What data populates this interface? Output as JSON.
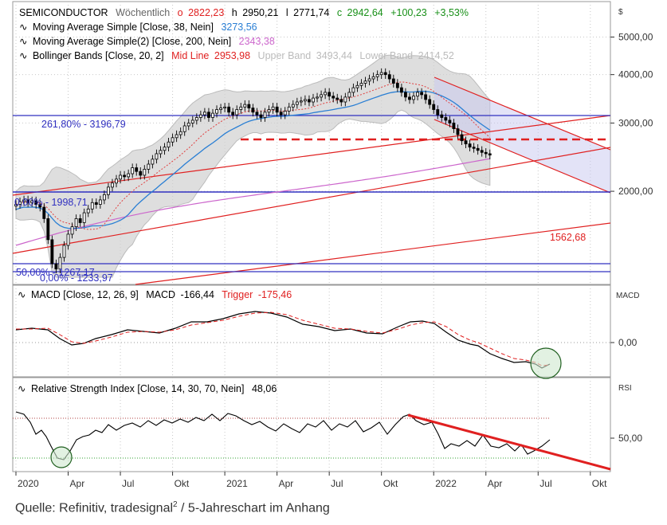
{
  "chart_data": {
    "type": "candlestick",
    "symbol": "SEMICONDUCTOR",
    "interval": "Wöchentlich",
    "ohlc": {
      "o_label": "o",
      "o": "2822,23",
      "h_label": "h",
      "h": "2950,21",
      "l_label": "l",
      "l": "2771,74",
      "c_label": "c",
      "c": "2942,64",
      "chg": "+100,23",
      "chg_pct": "+3,53%"
    },
    "indicators": [
      {
        "name": "Moving Average Simple [Close, 38, Nein]",
        "value": "3273,56",
        "color": "#2a7fd4"
      },
      {
        "name": "Moving Average Simple(2) [Close, 200, Nein]",
        "value": "2343,38",
        "color": "#cc66cc"
      },
      {
        "name": "Bollinger Bands [Close, 20, 2]",
        "mid_label": "Mid Line",
        "mid": "2953,98",
        "upper_label": "Upper Band",
        "upper": "3493,44",
        "lower_label": "Lower Band",
        "lower": "2414,52"
      }
    ],
    "currency_label": "$",
    "y_ticks": [
      {
        "label": "5000,00",
        "value": 5000
      },
      {
        "label": "4000,00",
        "value": 4000
      },
      {
        "label": "3000,00",
        "value": 3000
      },
      {
        "label": "2000,00",
        "value": 2000
      }
    ],
    "y_range": [
      1150,
      6000
    ],
    "y_scale": "log",
    "x_ticks": [
      {
        "label": "2020",
        "week": 0
      },
      {
        "label": "Apr",
        "week": 13
      },
      {
        "label": "Jul",
        "week": 26
      },
      {
        "label": "Okt",
        "week": 39
      },
      {
        "label": "2021",
        "week": 52
      },
      {
        "label": "Apr",
        "week": 65
      },
      {
        "label": "Jul",
        "week": 78
      },
      {
        "label": "Okt",
        "week": 91
      },
      {
        "label": "2022",
        "week": 104
      },
      {
        "label": "Apr",
        "week": 117
      },
      {
        "label": "Jul",
        "week": 130
      },
      {
        "label": "Okt",
        "week": 143
      }
    ],
    "x_range_weeks": [
      0,
      148
    ],
    "closes": [
      1850,
      1880,
      1900,
      1870,
      1890,
      1850,
      1820,
      1700,
      1500,
      1300,
      1260,
      1350,
      1450,
      1550,
      1620,
      1700,
      1660,
      1760,
      1800,
      1870,
      1850,
      1900,
      1960,
      2050,
      2100,
      2150,
      2200,
      2180,
      2220,
      2300,
      2250,
      2200,
      2280,
      2350,
      2420,
      2500,
      2550,
      2600,
      2680,
      2750,
      2800,
      2850,
      2950,
      3000,
      3050,
      3100,
      3150,
      3200,
      3100,
      3180,
      3250,
      3280,
      3300,
      3200,
      3150,
      3250,
      3300,
      3350,
      3280,
      3200,
      3150,
      3100,
      3200,
      3250,
      3300,
      3200,
      3150,
      3220,
      3300,
      3350,
      3400,
      3420,
      3450,
      3400,
      3480,
      3500,
      3550,
      3600,
      3520,
      3480,
      3450,
      3400,
      3500,
      3600,
      3700,
      3750,
      3800,
      3850,
      3900,
      3950,
      4000,
      4050,
      4000,
      3900,
      3800,
      3700,
      3600,
      3500,
      3450,
      3520,
      3600,
      3550,
      3450,
      3350,
      3250,
      3150,
      3100,
      3050,
      3000,
      2900,
      2800,
      2700,
      2650,
      2600,
      2580,
      2550,
      2520,
      2500,
      2480
    ],
    "fib_levels": [
      {
        "label": "261,80% - 3196,79",
        "value": 3196.79
      },
      {
        "label": "0,00% - 1233,97",
        "value": 1233.97
      },
      {
        "label": "50,00% - 1267,17",
        "value": 1267.17
      },
      {
        "label": "0,00% - 1998,71",
        "value": 1998.71
      }
    ],
    "support_label": "1562,68",
    "macd": {
      "title": "MACD [Close, 12, 26, 9]",
      "macd_label": "MACD",
      "macd_value": "-166,44",
      "trigger_label": "Trigger",
      "trigger_value": "-175,46",
      "axis_label": "MACD",
      "zero_label": "0,00"
    },
    "rsi": {
      "title": "Relative Strength Index [Close, 14, 30, 70, Nein]",
      "value": "48,06",
      "axis_label": "RSI",
      "tick_label": "50,00"
    }
  },
  "caption": {
    "text": "Quelle: Refinitiv, tradesignal",
    "sup": "2",
    "rest": " / 5-Jahreschart im Anhang"
  }
}
